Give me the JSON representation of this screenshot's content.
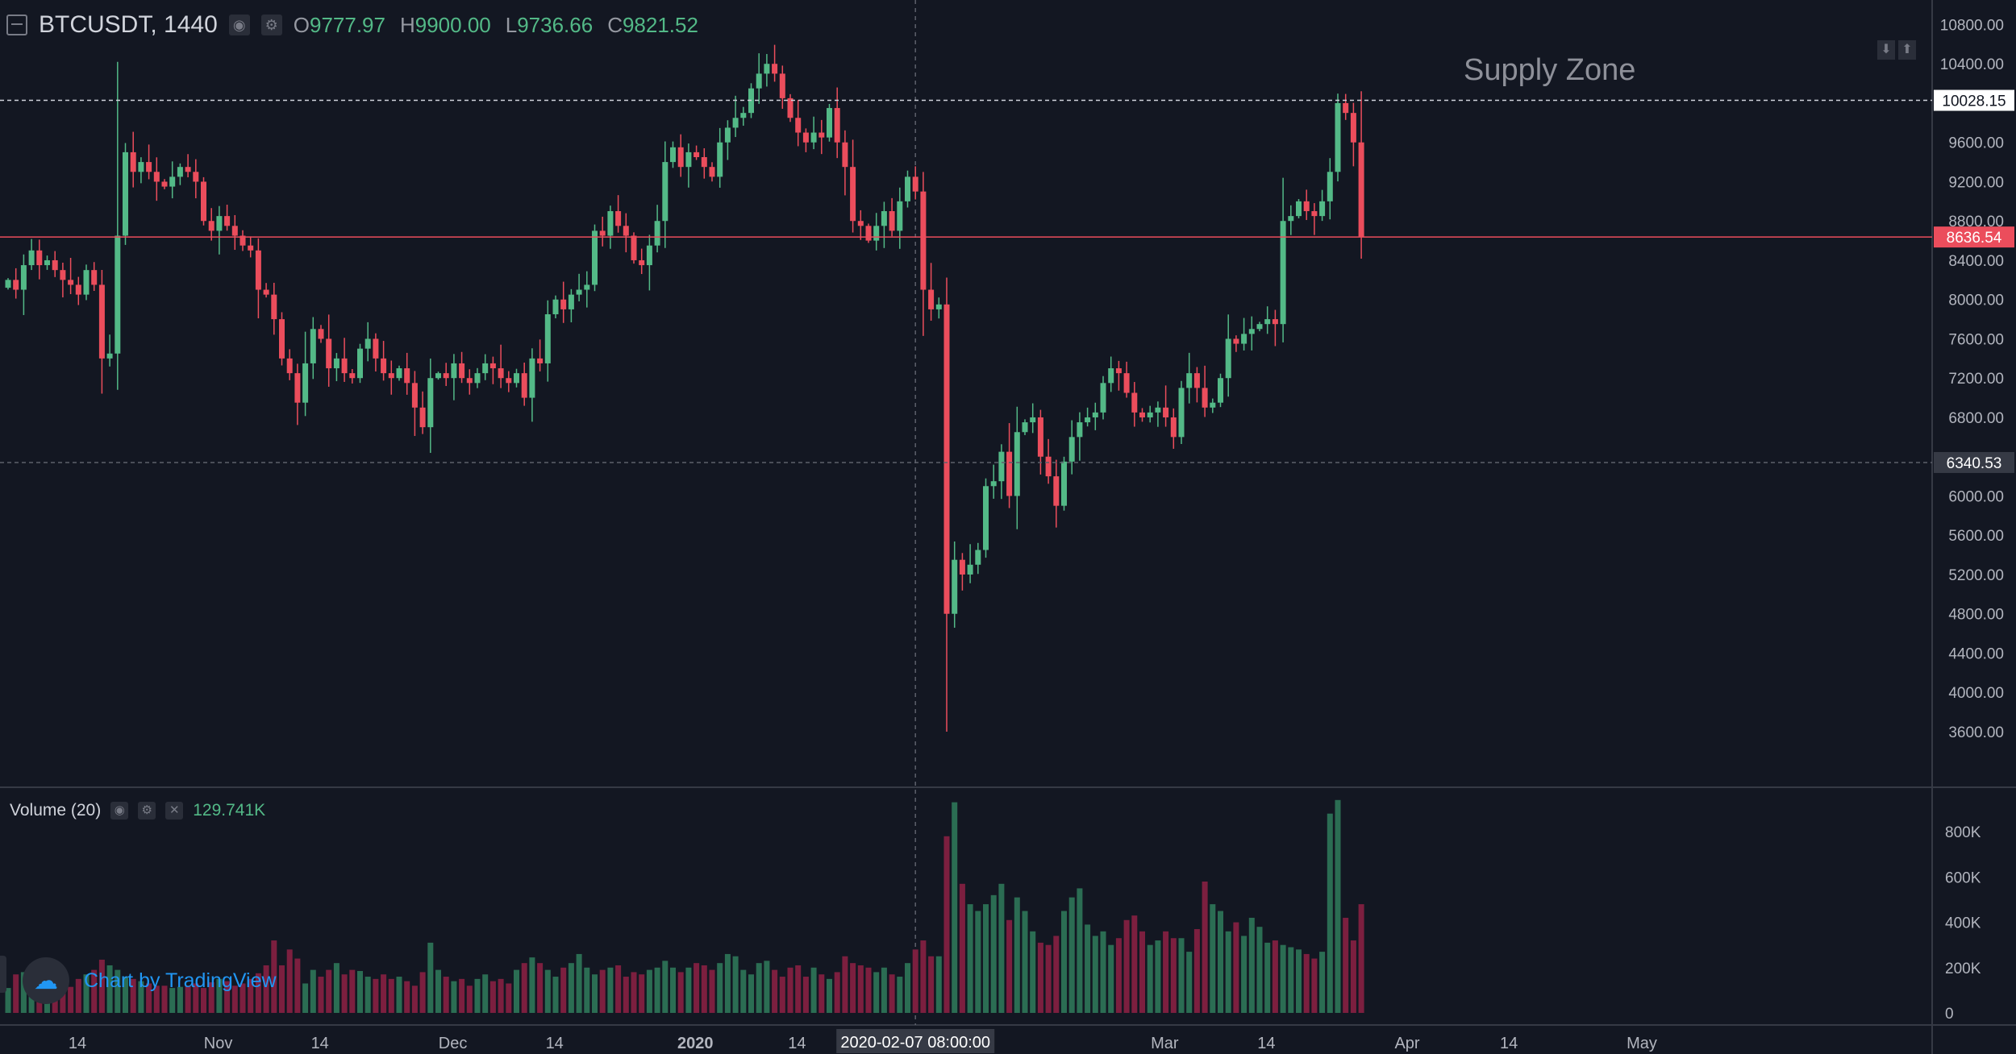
{
  "header": {
    "symbol": "BTCUSDT, 1440",
    "open_key": "O",
    "open": "9777.97",
    "high_key": "H",
    "high": "9900.00",
    "low_key": "L",
    "low": "9736.66",
    "close_key": "C",
    "close": "9821.52"
  },
  "volume_header": {
    "label": "Volume (20)",
    "value": "129.741K"
  },
  "annotation": {
    "supply_zone": "Supply Zone"
  },
  "branding": {
    "text": "Chart by TradingView"
  },
  "colors": {
    "up": "#53b987",
    "down": "#eb4d5c",
    "up_vol": "#2b6d53",
    "down_vol": "#7c1f3f",
    "background": "#131722",
    "grid": "#2a2e39",
    "text": "#d1d4dc",
    "current_price": "#eb4d5c"
  },
  "icons": [
    "collapse-icon",
    "eye-icon",
    "gear-icon",
    "close-icon",
    "tradingview-logo-icon",
    "arrow-up-icon",
    "arrow-down-icon"
  ],
  "chart_data": {
    "type": "candlestick",
    "price_axis": {
      "ticks": [
        10800,
        10400,
        9600,
        9200,
        8800,
        8400,
        8000,
        7600,
        7200,
        6800,
        6000,
        5600,
        5200,
        4800,
        4400,
        4000,
        3600
      ],
      "tick_labels": [
        "10800.00",
        "10400.00",
        "9600.00",
        "9200.00",
        "8800.00",
        "8400.00",
        "8000.00",
        "7600.00",
        "7200.00",
        "6800.00",
        "6000.00",
        "5600.00",
        "5200.00",
        "4800.00",
        "4400.00",
        "4000.00",
        "3600.00"
      ],
      "ylim": [
        3050,
        11050
      ]
    },
    "volume_axis": {
      "ticks": [
        0,
        200000,
        400000,
        600000,
        800000
      ],
      "tick_labels": [
        "0",
        "200K",
        "400K",
        "600K",
        "800K"
      ],
      "ylim": [
        0,
        950000
      ]
    },
    "x_axis": {
      "labels": [
        {
          "text": "14",
          "day": 0
        },
        {
          "text": "Nov",
          "day": 18
        },
        {
          "text": "14",
          "day": 31
        },
        {
          "text": "Dec",
          "day": 48
        },
        {
          "text": "14",
          "day": 61
        },
        {
          "text": "2020",
          "day": 79
        },
        {
          "text": "14",
          "day": 92
        },
        {
          "text": "Mar",
          "day": 139
        },
        {
          "text": "14",
          "day": 152
        },
        {
          "text": "Apr",
          "day": 170
        },
        {
          "text": "14",
          "day": 183
        },
        {
          "text": "May",
          "day": 200
        }
      ],
      "crosshair_label": "2020-02-07 08:00:00",
      "crosshair_day": 116
    },
    "horizontal_lines": [
      {
        "price": 10028.15,
        "label": "10028.15",
        "style": "dashed",
        "color": "#d1d4dc"
      },
      {
        "price": 8636.54,
        "label": "8636.54",
        "style": "solid",
        "color": "#eb4d5c"
      },
      {
        "price": 6340.53,
        "label": "6340.53",
        "style": "dashed",
        "color": "#5d606b"
      }
    ],
    "close_series": [
      8200,
      8100,
      8350,
      8500,
      8350,
      8400,
      8300,
      8200,
      8150,
      8050,
      8300,
      8150,
      7400,
      7450,
      8650,
      9500,
      9300,
      9400,
      9300,
      9200,
      9150,
      9250,
      9350,
      9300,
      9200,
      8800,
      8700,
      8850,
      8750,
      8650,
      8550,
      8500,
      8100,
      8050,
      7800,
      7400,
      7250,
      6950,
      7350,
      7700,
      7600,
      7300,
      7400,
      7250,
      7200,
      7500,
      7600,
      7400,
      7250,
      7200,
      7300,
      7150,
      6900,
      6700,
      7200,
      7250,
      7200,
      7350,
      7200,
      7150,
      7250,
      7350,
      7300,
      7200,
      7150,
      7250,
      7000,
      7400,
      7350,
      7850,
      8000,
      7900,
      8050,
      8100,
      8150,
      8700,
      8650,
      8900,
      8750,
      8650,
      8400,
      8350,
      8550,
      8800,
      9400,
      9550,
      9350,
      9500,
      9450,
      9350,
      9250,
      9600,
      9750,
      9850,
      9900,
      10150,
      10300,
      10400,
      10300,
      10050,
      9850,
      9700,
      9600,
      9700,
      9650,
      9950,
      9600,
      9350,
      8800,
      8750,
      8600,
      8750,
      8900,
      8700,
      9000,
      9250,
      9100,
      8100,
      7900,
      7950,
      4800,
      5350,
      5200,
      5300,
      5450,
      6100,
      6150,
      6450,
      6000,
      6650,
      6750,
      6800,
      6400,
      6200,
      5900,
      6350,
      6600,
      6750,
      6800,
      6850,
      7150,
      7300,
      7250,
      7050,
      6850,
      6800,
      6850,
      6900,
      6800,
      6600,
      7100,
      7250,
      7100,
      6900,
      6950,
      7200,
      7600,
      7550,
      7650,
      7700,
      7750,
      7800,
      7750,
      8800,
      8850,
      9000,
      8900,
      8850,
      9000,
      9300,
      10000,
      9900,
      9600,
      8636.54
    ],
    "volume_series": [
      110,
      170,
      180,
      150,
      140,
      130,
      125,
      120,
      115,
      150,
      170,
      190,
      235,
      210,
      190,
      160,
      150,
      140,
      130,
      120,
      120,
      110,
      115,
      120,
      130,
      110,
      135,
      150,
      140,
      120,
      130,
      150,
      175,
      210,
      320,
      210,
      280,
      240,
      130,
      190,
      160,
      190,
      220,
      170,
      190,
      185,
      160,
      150,
      170,
      150,
      160,
      140,
      120,
      180,
      310,
      190,
      160,
      140,
      150,
      120,
      150,
      170,
      140,
      150,
      130,
      190,
      220,
      245,
      220,
      190,
      160,
      200,
      220,
      260,
      200,
      170,
      190,
      200,
      210,
      160,
      180,
      170,
      190,
      200,
      230,
      200,
      180,
      200,
      220,
      210,
      190,
      220,
      260,
      250,
      190,
      170,
      220,
      230,
      190,
      160,
      200,
      210,
      160,
      200,
      170,
      150,
      180,
      250,
      220,
      210,
      200,
      180,
      200,
      170,
      160,
      220,
      280,
      320,
      250,
      250,
      780,
      930,
      570,
      480,
      450,
      480,
      520,
      570,
      410,
      510,
      450,
      360,
      310,
      300,
      340,
      450,
      510,
      550,
      390,
      340,
      360,
      300,
      330,
      410,
      430,
      360,
      300,
      320,
      360,
      330,
      330,
      270,
      370,
      580,
      480,
      450,
      360,
      400,
      340,
      420,
      380,
      310,
      320,
      300,
      290,
      280,
      260,
      240,
      270,
      880,
      940,
      420,
      320,
      480,
      460,
      470,
      420,
      500,
      720,
      460,
      440,
      380
    ]
  }
}
